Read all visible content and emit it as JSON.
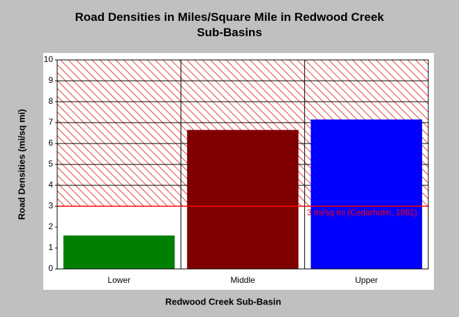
{
  "chart_data": {
    "type": "bar",
    "title": "Road Densities in Miles/Square Mile in Redwood Creek Sub-Basins",
    "x_label": "Redwood Creek Sub-Basin",
    "y_label": "Road Densities (mi/sq mi)",
    "categories": [
      "Lower",
      "Middle",
      "Upper"
    ],
    "values": [
      1.6,
      6.65,
      7.15
    ],
    "colors": [
      "#008000",
      "#800000",
      "#0000ff"
    ],
    "ylim": [
      0,
      10
    ],
    "yticks": [
      0,
      1,
      2,
      3,
      4,
      5,
      6,
      7,
      8,
      9,
      10
    ],
    "grid": true,
    "reference_line": {
      "value": 3,
      "label": "3 mi/sq mi (Cedarholm, 1981)",
      "color": "#ff0000"
    }
  }
}
